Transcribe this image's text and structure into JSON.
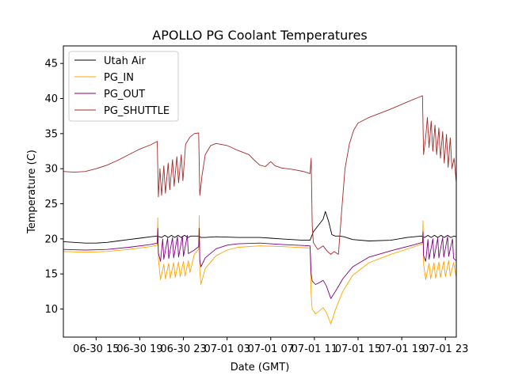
{
  "chart_data": {
    "type": "line",
    "title": "APOLLO PG Coolant Temperatures",
    "xlabel": "Date (GMT)",
    "ylabel": "Temperature (C)",
    "x_units": "hours since 06-30 12:00 GMT",
    "xlim": [
      0,
      36
    ],
    "ylim": [
      6.0,
      47.5
    ],
    "yticks": [
      10,
      15,
      20,
      25,
      30,
      35,
      40,
      45
    ],
    "xticks": [
      {
        "x": 3,
        "label": "06-30 15"
      },
      {
        "x": 7,
        "label": "06-30 19"
      },
      {
        "x": 11,
        "label": "06-30 23"
      },
      {
        "x": 15,
        "label": "07-01 03"
      },
      {
        "x": 19,
        "label": "07-01 07"
      },
      {
        "x": 23,
        "label": "07-01 11"
      },
      {
        "x": 27,
        "label": "07-01 15"
      },
      {
        "x": 31,
        "label": "07-01 19"
      },
      {
        "x": 35,
        "label": "07-01 23"
      }
    ],
    "grid": false,
    "legend": {
      "position": "top-left"
    },
    "series": [
      {
        "name": "Utah Air",
        "color": "#000000",
        "points": [
          [
            0,
            19.6
          ],
          [
            1,
            19.5
          ],
          [
            2,
            19.4
          ],
          [
            3,
            19.4
          ],
          [
            4,
            19.5
          ],
          [
            5,
            19.7
          ],
          [
            6,
            19.9
          ],
          [
            7,
            20.1
          ],
          [
            8,
            20.3
          ],
          [
            8.6,
            20.4
          ],
          [
            9,
            20.2
          ],
          [
            9.3,
            20.5
          ],
          [
            9.6,
            20.2
          ],
          [
            9.9,
            20.5
          ],
          [
            10.2,
            20.2
          ],
          [
            10.5,
            20.5
          ],
          [
            10.8,
            20.2
          ],
          [
            11.1,
            20.5
          ],
          [
            11.4,
            20.2
          ],
          [
            11.7,
            20.4
          ],
          [
            12.4,
            20.4
          ],
          [
            12.6,
            20.2
          ],
          [
            13,
            20.2
          ],
          [
            14,
            20.3
          ],
          [
            16,
            20.2
          ],
          [
            18,
            20.2
          ],
          [
            19,
            20.1
          ],
          [
            20,
            20.0
          ],
          [
            22,
            19.8
          ],
          [
            22.6,
            19.8
          ],
          [
            22.9,
            21.0
          ],
          [
            23.4,
            22.0
          ],
          [
            23.8,
            22.8
          ],
          [
            24.0,
            23.9
          ],
          [
            24.3,
            22.5
          ],
          [
            24.6,
            20.6
          ],
          [
            24.9,
            20.4
          ],
          [
            25.3,
            20.4
          ],
          [
            25.7,
            20.3
          ],
          [
            26.5,
            19.9
          ],
          [
            28,
            19.7
          ],
          [
            30,
            19.8
          ],
          [
            31.5,
            20.2
          ],
          [
            32.8,
            20.4
          ],
          [
            33.1,
            20.2
          ],
          [
            33.4,
            20.5
          ],
          [
            33.7,
            20.2
          ],
          [
            34.0,
            20.5
          ],
          [
            34.3,
            20.2
          ],
          [
            34.6,
            20.5
          ],
          [
            34.9,
            20.2
          ],
          [
            35.2,
            20.5
          ],
          [
            35.5,
            20.2
          ],
          [
            35.8,
            20.4
          ],
          [
            36,
            20.3
          ]
        ]
      },
      {
        "name": "PG_IN",
        "color": "#ffa500",
        "points": [
          [
            0,
            18.2
          ],
          [
            2,
            18.1
          ],
          [
            4,
            18.2
          ],
          [
            6,
            18.5
          ],
          [
            8,
            18.9
          ],
          [
            8.6,
            19.1
          ],
          [
            8.65,
            23.0
          ],
          [
            8.7,
            17.2
          ],
          [
            8.9,
            14.2
          ],
          [
            9.2,
            16.4
          ],
          [
            9.35,
            14.3
          ],
          [
            9.65,
            16.5
          ],
          [
            9.8,
            14.4
          ],
          [
            10.1,
            16.6
          ],
          [
            10.25,
            14.5
          ],
          [
            10.55,
            16.7
          ],
          [
            10.7,
            14.6
          ],
          [
            11.0,
            16.8
          ],
          [
            11.15,
            14.7
          ],
          [
            11.45,
            16.9
          ],
          [
            11.6,
            15.2
          ],
          [
            12.0,
            17.8
          ],
          [
            12.4,
            18.5
          ],
          [
            12.45,
            23.3
          ],
          [
            12.5,
            15.5
          ],
          [
            12.6,
            13.5
          ],
          [
            13,
            15.8
          ],
          [
            14,
            17.6
          ],
          [
            15,
            18.4
          ],
          [
            16,
            18.8
          ],
          [
            18,
            19.0
          ],
          [
            20,
            18.9
          ],
          [
            22.6,
            18.7
          ],
          [
            22.7,
            12.0
          ],
          [
            22.8,
            10.0
          ],
          [
            23.1,
            9.3
          ],
          [
            23.5,
            9.8
          ],
          [
            23.8,
            10.2
          ],
          [
            24.1,
            9.5
          ],
          [
            24.5,
            7.9
          ],
          [
            25.0,
            10.2
          ],
          [
            25.6,
            12.5
          ],
          [
            26.5,
            14.8
          ],
          [
            28,
            16.6
          ],
          [
            30,
            17.8
          ],
          [
            32,
            18.8
          ],
          [
            32.9,
            19.3
          ],
          [
            32.95,
            22.6
          ],
          [
            33.0,
            16.4
          ],
          [
            33.2,
            14.2
          ],
          [
            33.5,
            16.5
          ],
          [
            33.65,
            14.3
          ],
          [
            33.95,
            16.6
          ],
          [
            34.1,
            14.4
          ],
          [
            34.4,
            16.7
          ],
          [
            34.55,
            14.5
          ],
          [
            34.85,
            16.8
          ],
          [
            35.0,
            14.6
          ],
          [
            35.3,
            16.9
          ],
          [
            35.45,
            14.7
          ],
          [
            35.75,
            16.6
          ],
          [
            36,
            14.5
          ]
        ]
      },
      {
        "name": "PG_OUT",
        "color": "#800080",
        "points": [
          [
            0,
            18.5
          ],
          [
            2,
            18.4
          ],
          [
            4,
            18.5
          ],
          [
            6,
            18.8
          ],
          [
            8,
            19.2
          ],
          [
            8.6,
            19.4
          ],
          [
            8.65,
            21.5
          ],
          [
            8.7,
            18.0
          ],
          [
            8.9,
            16.8
          ],
          [
            9.1,
            20.0
          ],
          [
            9.2,
            17.1
          ],
          [
            9.55,
            20.1
          ],
          [
            9.65,
            17.2
          ],
          [
            10.0,
            20.2
          ],
          [
            10.1,
            17.3
          ],
          [
            10.45,
            20.3
          ],
          [
            10.55,
            17.4
          ],
          [
            10.9,
            20.4
          ],
          [
            11.0,
            17.5
          ],
          [
            11.35,
            20.5
          ],
          [
            11.45,
            17.9
          ],
          [
            12.0,
            18.4
          ],
          [
            12.4,
            18.9
          ],
          [
            12.45,
            21.5
          ],
          [
            12.5,
            17.0
          ],
          [
            12.6,
            16.0
          ],
          [
            13,
            17.3
          ],
          [
            14,
            18.6
          ],
          [
            15,
            19.1
          ],
          [
            16,
            19.3
          ],
          [
            18,
            19.4
          ],
          [
            20,
            19.2
          ],
          [
            22.6,
            19.0
          ],
          [
            22.7,
            15.0
          ],
          [
            22.8,
            14.0
          ],
          [
            23.1,
            13.5
          ],
          [
            23.5,
            13.8
          ],
          [
            23.8,
            14.1
          ],
          [
            24.1,
            13.3
          ],
          [
            24.5,
            11.5
          ],
          [
            25.0,
            12.7
          ],
          [
            25.6,
            14.3
          ],
          [
            26.5,
            16.0
          ],
          [
            28,
            17.4
          ],
          [
            30,
            18.3
          ],
          [
            32,
            19.1
          ],
          [
            32.9,
            19.5
          ],
          [
            32.95,
            21.0
          ],
          [
            33.0,
            17.6
          ],
          [
            33.2,
            16.8
          ],
          [
            33.4,
            19.9
          ],
          [
            33.5,
            17.1
          ],
          [
            33.85,
            20.0
          ],
          [
            33.95,
            17.2
          ],
          [
            34.3,
            20.1
          ],
          [
            34.4,
            17.3
          ],
          [
            34.75,
            20.2
          ],
          [
            34.85,
            17.4
          ],
          [
            35.2,
            20.3
          ],
          [
            35.3,
            17.5
          ],
          [
            35.65,
            20.0
          ],
          [
            35.75,
            17.2
          ],
          [
            36,
            16.9
          ]
        ]
      },
      {
        "name": "PG_SHUTTLE",
        "color": "#a52a2a",
        "points": [
          [
            0,
            29.6
          ],
          [
            1,
            29.5
          ],
          [
            2,
            29.6
          ],
          [
            3,
            30.0
          ],
          [
            4,
            30.5
          ],
          [
            5,
            31.2
          ],
          [
            6,
            32.0
          ],
          [
            7,
            32.8
          ],
          [
            8,
            33.4
          ],
          [
            8.6,
            33.9
          ],
          [
            8.7,
            26.0
          ],
          [
            8.85,
            30.0
          ],
          [
            9.0,
            26.2
          ],
          [
            9.2,
            30.4
          ],
          [
            9.35,
            26.5
          ],
          [
            9.6,
            30.8
          ],
          [
            9.75,
            27.0
          ],
          [
            10.0,
            31.3
          ],
          [
            10.15,
            27.5
          ],
          [
            10.4,
            31.7
          ],
          [
            10.55,
            28.0
          ],
          [
            10.8,
            32.0
          ],
          [
            10.95,
            28.3
          ],
          [
            11.2,
            33.5
          ],
          [
            11.6,
            34.5
          ],
          [
            12.0,
            35.0
          ],
          [
            12.4,
            35.1
          ],
          [
            12.5,
            26.2
          ],
          [
            12.7,
            29.0
          ],
          [
            13,
            32.0
          ],
          [
            13.5,
            33.3
          ],
          [
            14,
            33.6
          ],
          [
            15,
            33.3
          ],
          [
            16,
            32.6
          ],
          [
            17,
            32.0
          ],
          [
            17.5,
            31.2
          ],
          [
            18,
            30.5
          ],
          [
            18.5,
            30.3
          ],
          [
            19.0,
            31.0
          ],
          [
            19.4,
            30.4
          ],
          [
            20,
            30.1
          ],
          [
            21,
            29.9
          ],
          [
            22,
            29.6
          ],
          [
            22.6,
            29.3
          ],
          [
            22.7,
            31.5
          ],
          [
            22.8,
            22.0
          ],
          [
            22.9,
            19.5
          ],
          [
            23.3,
            18.5
          ],
          [
            23.8,
            19.0
          ],
          [
            24.2,
            18.2
          ],
          [
            24.5,
            17.8
          ],
          [
            24.8,
            18.2
          ],
          [
            25.0,
            18.0
          ],
          [
            25.2,
            17.8
          ],
          [
            25.5,
            24.0
          ],
          [
            25.8,
            30.0
          ],
          [
            26.2,
            33.5
          ],
          [
            26.6,
            35.5
          ],
          [
            27.0,
            36.5
          ],
          [
            28,
            37.3
          ],
          [
            30,
            38.5
          ],
          [
            31.5,
            39.5
          ],
          [
            32.9,
            40.4
          ],
          [
            33.0,
            32.0
          ],
          [
            33.2,
            34.5
          ],
          [
            33.35,
            37.3
          ],
          [
            33.5,
            33.0
          ],
          [
            33.7,
            36.8
          ],
          [
            33.85,
            32.5
          ],
          [
            34.05,
            36.2
          ],
          [
            34.2,
            32.0
          ],
          [
            34.4,
            35.8
          ],
          [
            34.55,
            31.5
          ],
          [
            34.75,
            35.3
          ],
          [
            34.9,
            30.8
          ],
          [
            35.1,
            34.9
          ],
          [
            35.25,
            30.2
          ],
          [
            35.45,
            34.4
          ],
          [
            35.6,
            30.0
          ],
          [
            35.8,
            31.5
          ],
          [
            36,
            28.0
          ]
        ]
      }
    ]
  }
}
